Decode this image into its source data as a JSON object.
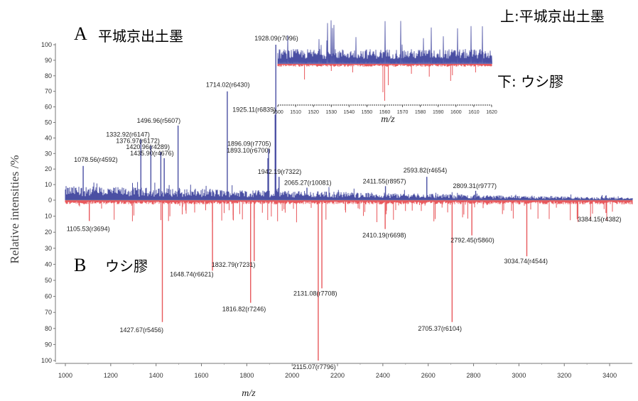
{
  "chart_data": [
    {
      "type": "line",
      "panel_a_letter": "A",
      "panel_a_label": "平城京出土墨",
      "panel_b_letter": "B",
      "panel_b_label": "ウシ膠",
      "xlabel": "m/z",
      "ylabel": "Relative intensities /%",
      "xlim": [
        1000,
        3500
      ],
      "xticks": [
        1000,
        1200,
        1400,
        1600,
        1800,
        2000,
        2200,
        2400,
        2600,
        2800,
        3000,
        3200,
        3400
      ],
      "ylim": [
        -100,
        100
      ],
      "yticks_upper": [
        "100",
        "90",
        "80",
        "70",
        "60",
        "50",
        "40",
        "30",
        "20",
        "10",
        "0"
      ],
      "yticks_lower": [
        "10",
        "20",
        "30",
        "40",
        "50",
        "60",
        "70",
        "80",
        "90",
        "100"
      ],
      "series": [
        {
          "color": "#4a4fa3",
          "peaks": [
            {
              "x": 1078.56,
              "y": 22,
              "label": "1078.56(r4592)"
            },
            {
              "x": 1332.92,
              "y": 39,
              "label": "1332.92(r6147)"
            },
            {
              "x": 1376.97,
              "y": 35,
              "label": "1376.97(r6172)"
            },
            {
              "x": 1420.96,
              "y": 31,
              "label": "1420.96(r4289)"
            },
            {
              "x": 1435.9,
              "y": 27,
              "label": "1435.90(r4676)"
            },
            {
              "x": 1496.96,
              "y": 48,
              "label": "1496.96(r5607)"
            },
            {
              "x": 1714.02,
              "y": 70,
              "label": "1714.02(r6430)"
            },
            {
              "x": 1893.1,
              "y": 27,
              "label": "1893.10(r6700)"
            },
            {
              "x": 1896.09,
              "y": 33,
              "label": "1896.09(r7705)"
            },
            {
              "x": 1925.11,
              "y": 55,
              "label": "1925.11(r6839)"
            },
            {
              "x": 1928.09,
              "y": 100,
              "label": "1928.09(r7096)"
            },
            {
              "x": 1942.19,
              "y": 15,
              "label": "1942.19(r7322)"
            },
            {
              "x": 2065.27,
              "y": 8,
              "label": "2065.27(r10081)"
            },
            {
              "x": 2411.55,
              "y": 9,
              "label": "2411.55(r8957)"
            },
            {
              "x": 2593.82,
              "y": 15,
              "label": "2593.82(r4654)"
            },
            {
              "x": 2809.31,
              "y": 6,
              "label": "2809.31(r9777)"
            }
          ]
        },
        {
          "color": "#e8585c",
          "peaks": [
            {
              "x": 1105.53,
              "y": -13,
              "label": "1105.53(r3694)"
            },
            {
              "x": 1427.67,
              "y": -76,
              "label": "1427.67(r5456)"
            },
            {
              "x": 1648.74,
              "y": -44,
              "label": "1648.74(r6621)"
            },
            {
              "x": 1816.82,
              "y": -64,
              "label": "1816.82(r7246)"
            },
            {
              "x": 1832.79,
              "y": -38,
              "label": "1832.79(r7231)"
            },
            {
              "x": 2115.07,
              "y": -100,
              "label": "2115.07(r7796)"
            },
            {
              "x": 2131.08,
              "y": -55,
              "label": "2131.08(r7708)"
            },
            {
              "x": 2410.19,
              "y": -18,
              "label": "2410.19(r6698)"
            },
            {
              "x": 2705.37,
              "y": -76,
              "label": "2705.37(r6104)"
            },
            {
              "x": 2792.45,
              "y": -22,
              "label": "2792.45(r5860)"
            },
            {
              "x": 3034.74,
              "y": -35,
              "label": "3034.74(r4544)"
            },
            {
              "x": 3384.15,
              "y": -8,
              "label": "3384.15(r4382)"
            }
          ]
        }
      ]
    },
    {
      "type": "line",
      "xlabel": "m/z",
      "xlim": [
        1500,
        1620
      ],
      "xticks": [
        1500,
        1510,
        1520,
        1530,
        1540,
        1550,
        1560,
        1570,
        1580,
        1590,
        1600,
        1610,
        1620
      ],
      "top_label": "上:平城京出土墨",
      "bottom_label": "下: ウシ膠"
    }
  ]
}
